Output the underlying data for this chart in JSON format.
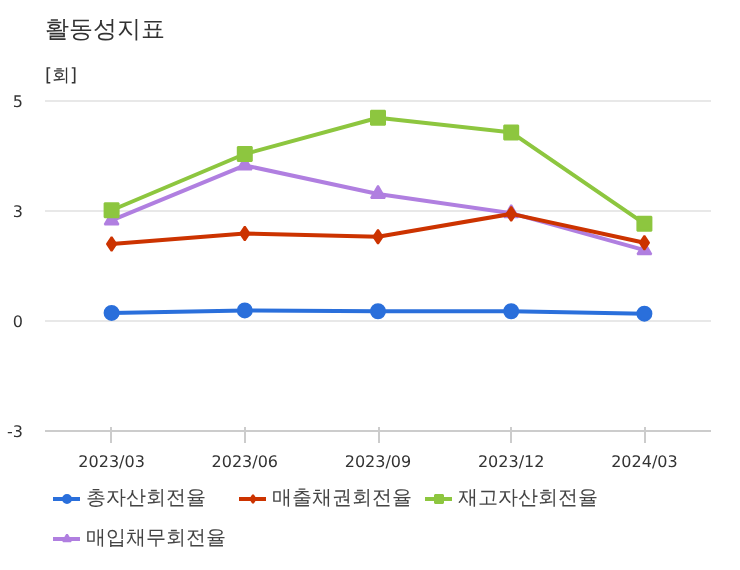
{
  "chart_data": {
    "type": "line",
    "title": "활동성지표",
    "ylabel": "[회]",
    "categories": [
      "2023/03",
      "2023/06",
      "2023/09",
      "2023/12",
      "2024/03"
    ],
    "ylim": [
      -2.7,
      5.5
    ],
    "yticks": [
      {
        "value": -2.7,
        "label": "-3"
      },
      {
        "value": 0,
        "label": "0"
      },
      {
        "value": 2.7,
        "label": "3"
      },
      {
        "value": 5.4,
        "label": "5"
      }
    ],
    "grid": "y",
    "legend": "bottom",
    "line_style": "solid",
    "series": [
      {
        "name": "총자산회전율",
        "color": "#2a6fdb",
        "marker": "circle",
        "values": [
          0.2,
          0.26,
          0.24,
          0.24,
          0.18
        ]
      },
      {
        "name": "매출채권회전율",
        "color": "#cc3300",
        "marker": "diamond",
        "values": [
          1.89,
          2.15,
          2.07,
          2.63,
          1.92
        ]
      },
      {
        "name": "재고자산회전율",
        "color": "#8dc63f",
        "marker": "square",
        "values": [
          2.72,
          4.1,
          4.99,
          4.63,
          2.39
        ]
      },
      {
        "name": "매입채무회전율",
        "color": "#b07fe0",
        "marker": "triangle",
        "values": [
          2.47,
          3.82,
          3.12,
          2.65,
          1.74
        ]
      }
    ]
  }
}
